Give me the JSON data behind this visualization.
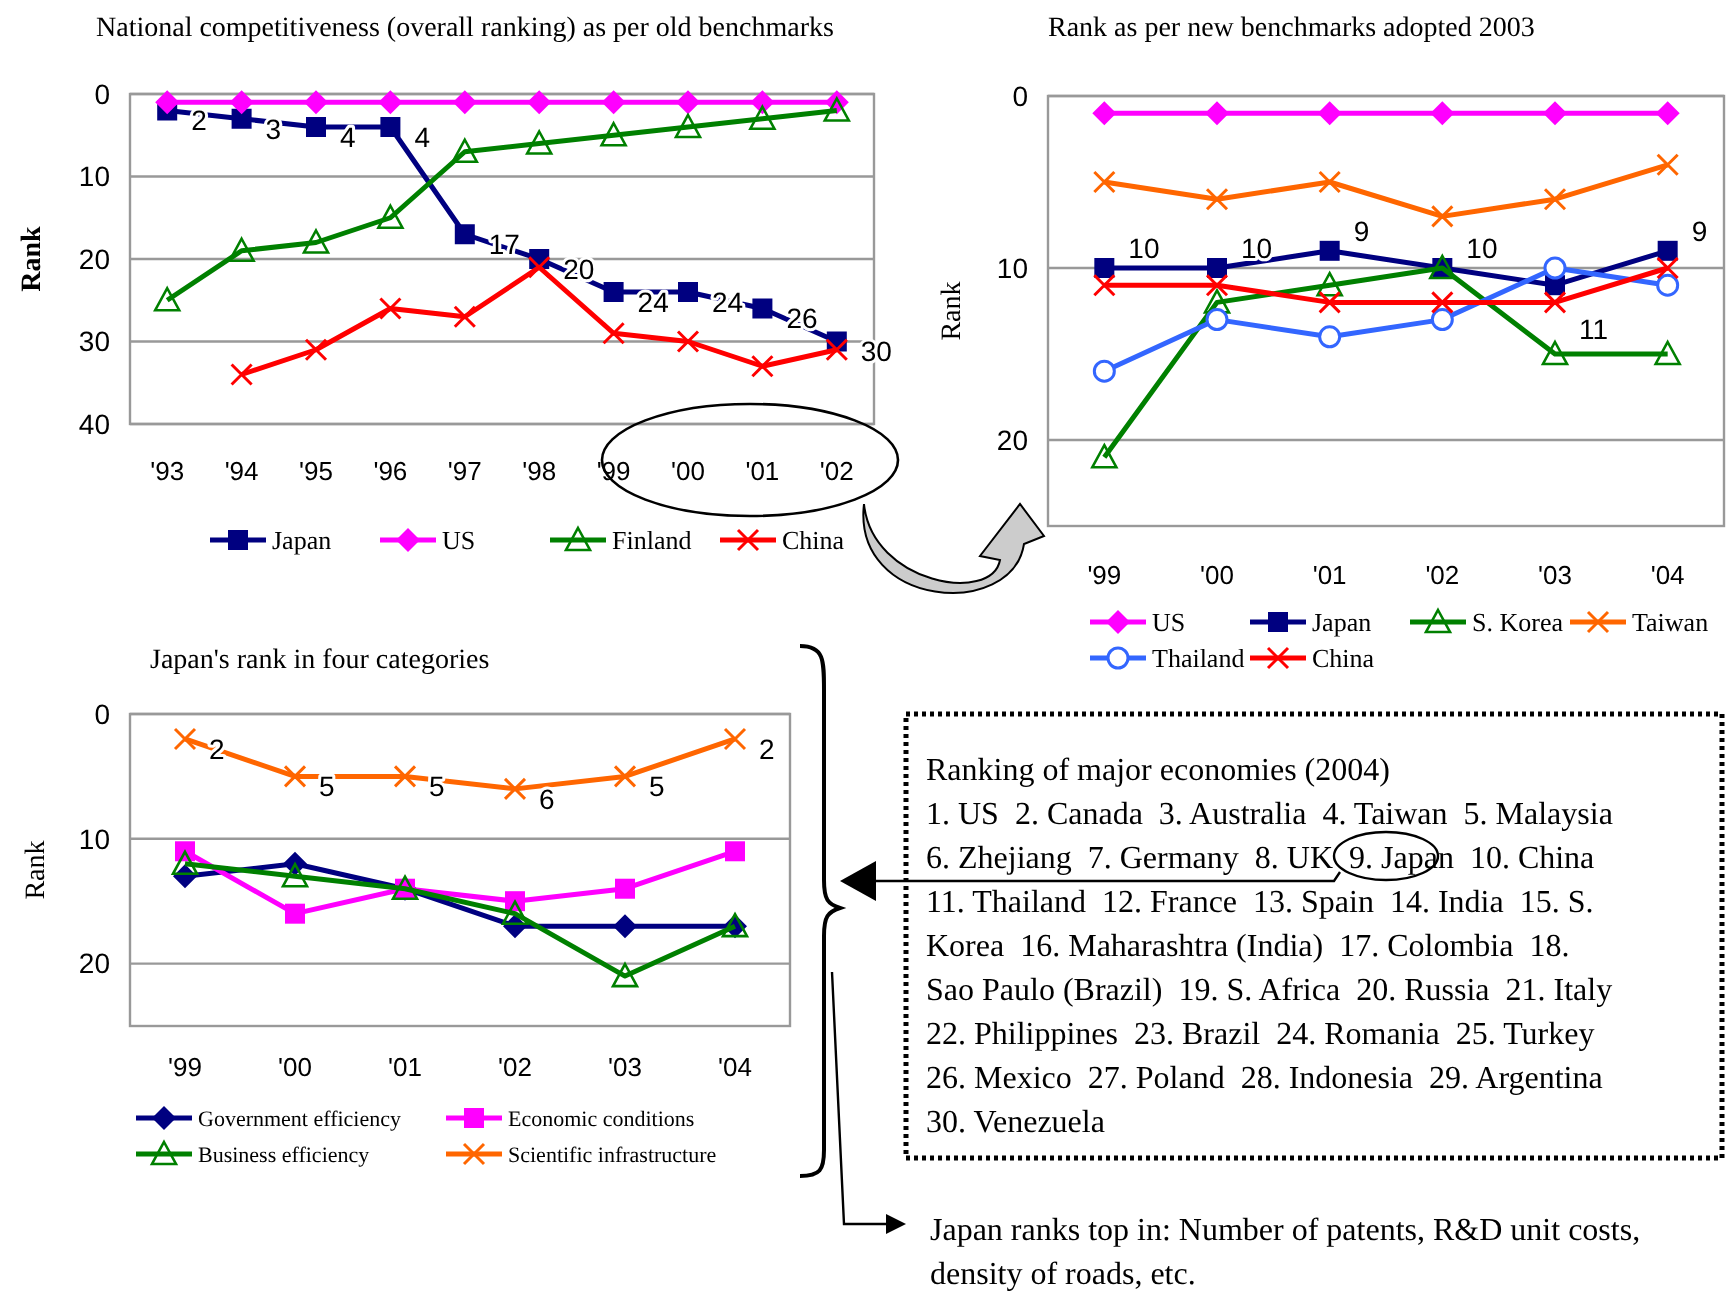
{
  "chart_data": [
    {
      "type": "line",
      "title": "National competitiveness (overall ranking) as per old benchmarks",
      "ylabel": "Rank",
      "categories": [
        "'93",
        "'94",
        "'95",
        "'96",
        "'97",
        "'98",
        "'99",
        "'00",
        "'01",
        "'02"
      ],
      "ylim": [
        40,
        0
      ],
      "yticks": [
        0,
        10,
        20,
        30,
        40
      ],
      "grid": "y",
      "legend": "bottom",
      "series": [
        {
          "name": "Japan",
          "color": "#000080",
          "marker": "square",
          "values": [
            2,
            3,
            4,
            4,
            17,
            20,
            24,
            24,
            26,
            30
          ],
          "value_labels": [
            "2",
            "3",
            "4",
            "4",
            "17",
            "20",
            "24",
            "24",
            "26",
            "30"
          ]
        },
        {
          "name": "US",
          "color": "#ff00ff",
          "marker": "diamond",
          "values": [
            1,
            1,
            1,
            1,
            1,
            1,
            1,
            1,
            1,
            1
          ]
        },
        {
          "name": "Finland",
          "color": "#008000",
          "marker": "triangle",
          "values": [
            25,
            19,
            18,
            15,
            7,
            6,
            5,
            4,
            3,
            2
          ]
        },
        {
          "name": "China",
          "color": "#ff0000",
          "marker": "cross",
          "values": [
            null,
            34,
            31,
            26,
            27,
            21,
            29,
            30,
            33,
            31
          ]
        }
      ]
    },
    {
      "type": "line",
      "title": "Rank as per new benchmarks adopted 2003",
      "ylabel": "Rank",
      "categories": [
        "'99",
        "'00",
        "'01",
        "'02",
        "'03",
        "'04"
      ],
      "ylim": [
        25,
        0
      ],
      "yticks": [
        0,
        10,
        20
      ],
      "grid": "y",
      "legend": "bottom",
      "series": [
        {
          "name": "US",
          "color": "#ff00ff",
          "marker": "diamond",
          "values": [
            1,
            1,
            1,
            1,
            1,
            1
          ]
        },
        {
          "name": "Japan",
          "color": "#000080",
          "marker": "square",
          "values": [
            10,
            10,
            9,
            10,
            11,
            9
          ],
          "value_labels": [
            "10",
            "10",
            "9",
            "10",
            "11",
            "9"
          ]
        },
        {
          "name": "S. Korea",
          "color": "#008000",
          "marker": "triangle",
          "values": [
            21,
            12,
            11,
            10,
            15,
            15
          ]
        },
        {
          "name": "Taiwan",
          "color": "#ff6600",
          "marker": "cross",
          "values": [
            5,
            6,
            5,
            7,
            6,
            4
          ]
        },
        {
          "name": "Thailand",
          "color": "#3366ff",
          "marker": "circle",
          "values": [
            16,
            13,
            14,
            13,
            10,
            11
          ]
        },
        {
          "name": "China",
          "color": "#ff0000",
          "marker": "cross",
          "values": [
            11,
            11,
            12,
            12,
            12,
            10
          ]
        }
      ]
    },
    {
      "type": "line",
      "title": "Japan's rank in four categories",
      "ylabel": "Rank",
      "categories": [
        "'99",
        "'00",
        "'01",
        "'02",
        "'03",
        "'04"
      ],
      "ylim": [
        25,
        0
      ],
      "yticks": [
        0,
        10,
        20
      ],
      "grid": "y",
      "legend": "bottom",
      "series": [
        {
          "name": "Government efficiency",
          "color": "#000080",
          "marker": "diamond",
          "values": [
            13,
            12,
            14,
            17,
            17,
            17
          ]
        },
        {
          "name": "Economic conditions",
          "color": "#ff00ff",
          "marker": "square",
          "values": [
            11,
            16,
            14,
            15,
            14,
            11
          ]
        },
        {
          "name": "Business efficiency",
          "color": "#008000",
          "marker": "triangle",
          "values": [
            12,
            13,
            14,
            16,
            21,
            17
          ]
        },
        {
          "name": "Scientific infrastructure",
          "color": "#ff6600",
          "marker": "cross",
          "values": [
            2,
            5,
            5,
            6,
            5,
            2
          ],
          "value_labels": [
            "2",
            "5",
            "5",
            "6",
            "5",
            "2"
          ]
        }
      ]
    },
    {
      "type": "other",
      "title": "Ranking of major economies (2004)",
      "annotations": [
        "1. US  2. Canada  3. Australia  4. Taiwan  5. Malaysia",
        "6. Zhejiang  7. Germany  8. UK  9. Japan  10. China",
        "11. Thailand  12. France  13. Spain  14. India  15. S.",
        "Korea  16. Maharashtra (India)  17. Colombia  18.",
        "Sao Paulo (Brazil)  19. S. Africa  20. Russia  21. Italy",
        "22. Philippines  23. Brazil  24. Romania  25. Turkey",
        "26. Mexico  27. Poland  28. Indonesia  29. Argentina",
        "30. Venezuela"
      ]
    },
    {
      "type": "other",
      "annotations": [
        "Japan ranks top in: Number of patents, R&D unit costs,",
        "density of roads, etc."
      ]
    }
  ]
}
